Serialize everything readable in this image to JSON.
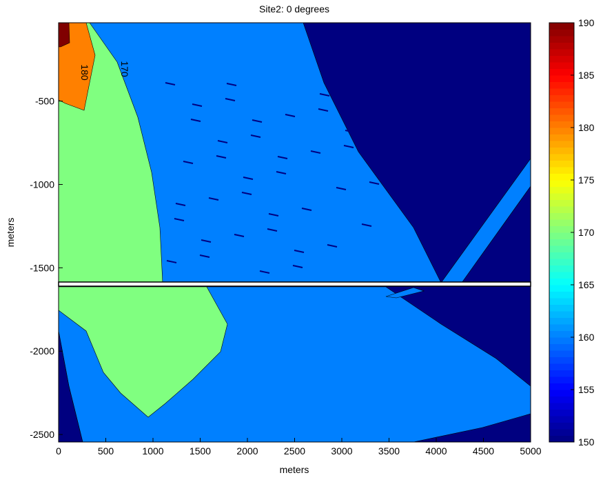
{
  "chart_data": {
    "type": "contour",
    "title": "Site2: 0 degrees",
    "x_label": "meters",
    "y_label": "meters",
    "xlim": [
      0,
      5000
    ],
    "xticks": [
      0,
      500,
      1000,
      1500,
      2000,
      2500,
      3000,
      3500,
      4000,
      4500,
      5000
    ],
    "ylim": [
      -2545,
      -30
    ],
    "yticks": [
      -500,
      -1000,
      -1500,
      -2000,
      -2500
    ],
    "colormap": "jet",
    "clim": [
      150,
      190
    ],
    "colorbar_ticks": [
      150,
      155,
      160,
      165,
      170,
      175,
      180,
      185,
      190
    ],
    "fill_levels": [
      150,
      160,
      170,
      180,
      190
    ],
    "contour_labels": [
      180,
      170
    ]
  }
}
